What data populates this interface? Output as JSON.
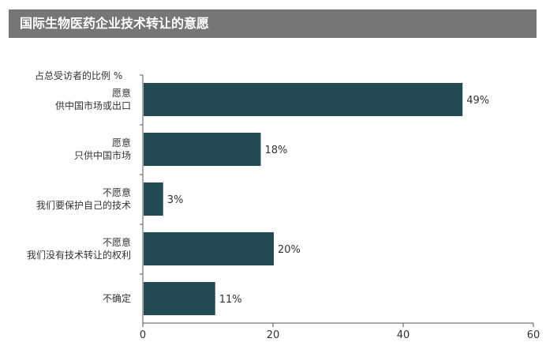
{
  "title": "国际生物医药企业技术转让的意愿",
  "chart_data": {
    "type": "bar",
    "orientation": "horizontal",
    "subtitle": "占总受访者的比例 %",
    "categories": [
      [
        "愿意",
        "供中国市场或出口"
      ],
      [
        "愿意",
        "只供中国市场"
      ],
      [
        "不愿意",
        "我们要保护自己的技术"
      ],
      [
        "不愿意",
        "我们没有技术转让的权利"
      ],
      [
        "不确定"
      ]
    ],
    "values": [
      49,
      18,
      3,
      20,
      11
    ],
    "value_labels": [
      "49%",
      "18%",
      "3%",
      "20%",
      "11%"
    ],
    "xlim": [
      0,
      60
    ],
    "xticks": [
      0,
      20,
      40,
      60
    ],
    "grid": false,
    "bar_color": "#244a56",
    "axis_color": "#555555",
    "text_color": "#333333"
  }
}
